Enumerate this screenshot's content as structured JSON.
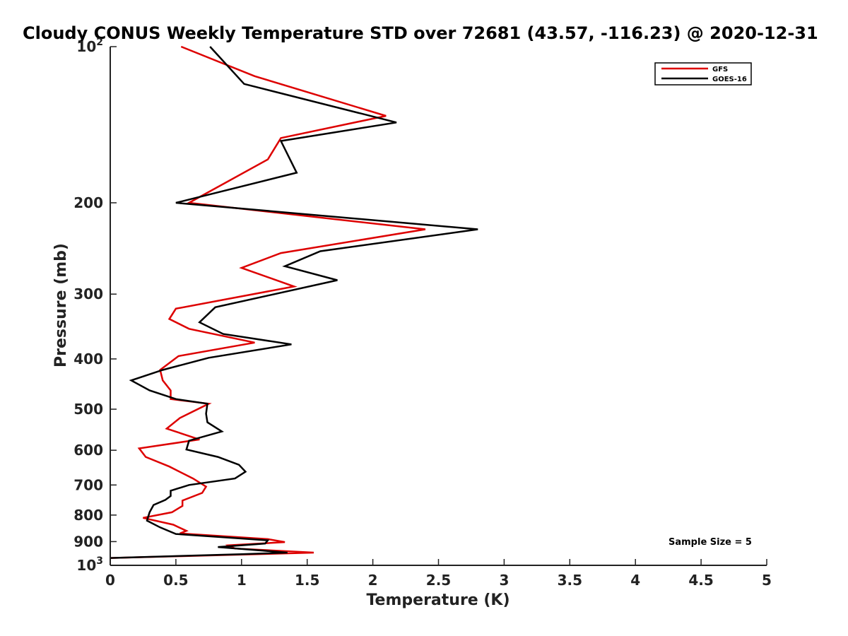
{
  "chart_data": {
    "type": "line",
    "title": "Cloudy CONUS Weekly Temperature STD over 72681 (43.57, -116.23) @ 2020-12-31",
    "xlabel": "Temperature (K)",
    "ylabel": "Pressure (mb)",
    "xlim": [
      0,
      5
    ],
    "ylim": [
      100,
      1000
    ],
    "y_scale": "log",
    "y_reversed": true,
    "x_ticks": [
      "0",
      "0.5",
      "1",
      "1.5",
      "2",
      "2.5",
      "3",
      "3.5",
      "4",
      "4.5",
      "5"
    ],
    "y_ticks": [
      {
        "value": 100,
        "base": "10",
        "exp": "2"
      },
      {
        "value": 200,
        "label": "200"
      },
      {
        "value": 300,
        "label": "300"
      },
      {
        "value": 400,
        "label": "400"
      },
      {
        "value": 500,
        "label": "500"
      },
      {
        "value": 600,
        "label": "600"
      },
      {
        "value": 700,
        "label": "700"
      },
      {
        "value": 800,
        "label": "800"
      },
      {
        "value": 900,
        "label": "900"
      },
      {
        "value": 1000,
        "base": "10",
        "exp": "3"
      }
    ],
    "grid": false,
    "legend_position": "top-right",
    "series": [
      {
        "name": "GFS",
        "color": "#dd0000",
        "points": [
          [
            0.54,
            100
          ],
          [
            1.1,
            114
          ],
          [
            2.1,
            136
          ],
          [
            1.3,
            150
          ],
          [
            1.2,
            165
          ],
          [
            0.6,
            200
          ],
          [
            2.4,
            225
          ],
          [
            1.3,
            250
          ],
          [
            1.0,
            267
          ],
          [
            1.4,
            290
          ],
          [
            0.5,
            320
          ],
          [
            0.45,
            335
          ],
          [
            0.6,
            350
          ],
          [
            1.1,
            372
          ],
          [
            0.52,
            395
          ],
          [
            0.38,
            420
          ],
          [
            0.4,
            440
          ],
          [
            0.46,
            460
          ],
          [
            0.46,
            478
          ],
          [
            0.75,
            488
          ],
          [
            0.53,
            520
          ],
          [
            0.43,
            545
          ],
          [
            0.68,
            572
          ],
          [
            0.22,
            595
          ],
          [
            0.27,
            618
          ],
          [
            0.45,
            645
          ],
          [
            0.63,
            680
          ],
          [
            0.73,
            705
          ],
          [
            0.7,
            725
          ],
          [
            0.55,
            750
          ],
          [
            0.55,
            768
          ],
          [
            0.47,
            790
          ],
          [
            0.25,
            810
          ],
          [
            0.48,
            835
          ],
          [
            0.58,
            858
          ],
          [
            0.53,
            868
          ],
          [
            0.9,
            880
          ],
          [
            1.2,
            890
          ],
          [
            1.33,
            902
          ],
          [
            0.9,
            915
          ],
          [
            0.95,
            928
          ],
          [
            1.55,
            945
          ],
          [
            0.9,
            955
          ],
          [
            0,
            968
          ]
        ]
      },
      {
        "name": "GOES-16",
        "color": "#000000",
        "points": [
          [
            0.76,
            100
          ],
          [
            1.02,
            118
          ],
          [
            2.18,
            140
          ],
          [
            1.3,
            152
          ],
          [
            1.42,
            175
          ],
          [
            0.5,
            200
          ],
          [
            2.8,
            225
          ],
          [
            1.6,
            248
          ],
          [
            1.33,
            265
          ],
          [
            1.73,
            282
          ],
          [
            0.8,
            318
          ],
          [
            0.68,
            340
          ],
          [
            0.86,
            358
          ],
          [
            1.38,
            375
          ],
          [
            0.75,
            398
          ],
          [
            0.4,
            420
          ],
          [
            0.16,
            440
          ],
          [
            0.3,
            460
          ],
          [
            0.5,
            478
          ],
          [
            0.74,
            488
          ],
          [
            0.73,
            510
          ],
          [
            0.74,
            530
          ],
          [
            0.85,
            552
          ],
          [
            0.6,
            575
          ],
          [
            0.58,
            598
          ],
          [
            0.82,
            618
          ],
          [
            0.98,
            640
          ],
          [
            1.03,
            660
          ],
          [
            0.95,
            680
          ],
          [
            0.6,
            700
          ],
          [
            0.46,
            718
          ],
          [
            0.46,
            735
          ],
          [
            0.42,
            748
          ],
          [
            0.33,
            765
          ],
          [
            0.3,
            790
          ],
          [
            0.28,
            820
          ],
          [
            0.38,
            845
          ],
          [
            0.5,
            870
          ],
          [
            1.2,
            895
          ],
          [
            1.18,
            908
          ],
          [
            0.82,
            922
          ],
          [
            1.35,
            945
          ],
          [
            1.0,
            952
          ],
          [
            0,
            968
          ]
        ]
      }
    ],
    "annotation": "Sample Size = 5"
  }
}
